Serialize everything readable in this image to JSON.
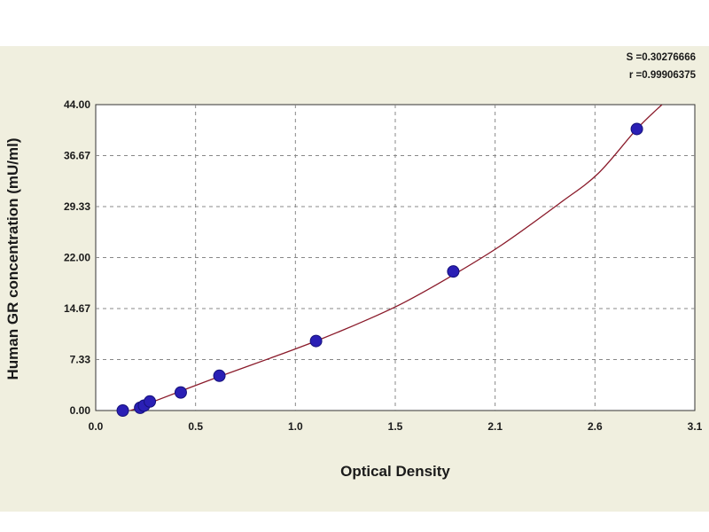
{
  "chart_data": {
    "type": "scatter",
    "title": "",
    "xlabel": "Optical Density",
    "ylabel": "Human GR concentration (mU/ml)",
    "xlim": [
      0.0,
      3.1
    ],
    "ylim": [
      0.0,
      44.0
    ],
    "x_ticks": [
      "0.0",
      "0.5",
      "1.0",
      "1.5",
      "2.1",
      "2.6",
      "3.1"
    ],
    "y_ticks": [
      "0.00",
      "7.33",
      "14.67",
      "22.00",
      "29.33",
      "36.67",
      "44.00"
    ],
    "grid": true,
    "stats": {
      "s": "S =0.30276666",
      "r": "r =0.99906375"
    },
    "colors": {
      "points": "#2a1fb5",
      "curve": "#8a1a2a",
      "background": "#f0efdf",
      "plot_area": "#ffffff"
    },
    "points": [
      {
        "x": 0.14,
        "y": 0.0
      },
      {
        "x": 0.23,
        "y": 0.4
      },
      {
        "x": 0.25,
        "y": 0.7
      },
      {
        "x": 0.28,
        "y": 1.3
      },
      {
        "x": 0.44,
        "y": 2.6
      },
      {
        "x": 0.64,
        "y": 5.0
      },
      {
        "x": 1.14,
        "y": 10.0
      },
      {
        "x": 1.85,
        "y": 20.0
      },
      {
        "x": 2.8,
        "y": 40.5
      }
    ],
    "curve": [
      {
        "x": 0.1,
        "y": -0.6
      },
      {
        "x": 0.2,
        "y": 0.2
      },
      {
        "x": 0.3,
        "y": 1.3
      },
      {
        "x": 0.45,
        "y": 2.9
      },
      {
        "x": 0.64,
        "y": 4.9
      },
      {
        "x": 0.9,
        "y": 7.5
      },
      {
        "x": 1.14,
        "y": 10.0
      },
      {
        "x": 1.4,
        "y": 13.0
      },
      {
        "x": 1.6,
        "y": 15.6
      },
      {
        "x": 1.85,
        "y": 19.5
      },
      {
        "x": 2.1,
        "y": 23.8
      },
      {
        "x": 2.4,
        "y": 29.8
      },
      {
        "x": 2.6,
        "y": 34.1
      },
      {
        "x": 2.8,
        "y": 40.5
      },
      {
        "x": 2.93,
        "y": 44.0
      }
    ]
  }
}
